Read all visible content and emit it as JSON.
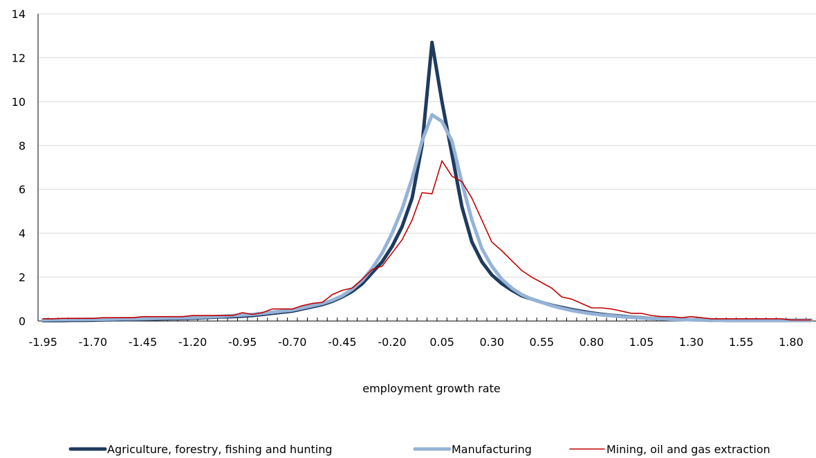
{
  "chart_data": {
    "type": "line",
    "title": "",
    "xlabel": "employment growth rate",
    "ylabel": "",
    "ylim": [
      0,
      14
    ],
    "yticks": [
      0,
      2,
      4,
      6,
      8,
      10,
      12,
      14
    ],
    "grid": "horizontal",
    "legend_position": "bottom",
    "x": [
      -1.95,
      -1.9,
      -1.85,
      -1.8,
      -1.75,
      -1.7,
      -1.65,
      -1.6,
      -1.55,
      -1.5,
      -1.45,
      -1.4,
      -1.35,
      -1.3,
      -1.25,
      -1.2,
      -1.15,
      -1.1,
      -1.05,
      -1.0,
      -0.95,
      -0.9,
      -0.85,
      -0.8,
      -0.75,
      -0.7,
      -0.65,
      -0.6,
      -0.55,
      -0.5,
      -0.45,
      -0.4,
      -0.35,
      -0.3,
      -0.25,
      -0.2,
      -0.15,
      -0.1,
      -0.05,
      0.0,
      0.05,
      0.1,
      0.15,
      0.2,
      0.25,
      0.3,
      0.35,
      0.4,
      0.45,
      0.5,
      0.55,
      0.6,
      0.65,
      0.7,
      0.75,
      0.8,
      0.85,
      0.9,
      0.95,
      1.0,
      1.05,
      1.1,
      1.15,
      1.2,
      1.25,
      1.3,
      1.35,
      1.4,
      1.45,
      1.5,
      1.55,
      1.6,
      1.65,
      1.7,
      1.75,
      1.8,
      1.85,
      1.9
    ],
    "xtick_labels": [
      "-1.95",
      "-1.70",
      "-1.45",
      "-1.20",
      "-0.95",
      "-0.70",
      "-0.45",
      "-0.20",
      "0.05",
      "0.30",
      "0.55",
      "0.80",
      "1.05",
      "1.30",
      "1.55",
      "1.80"
    ],
    "series": [
      {
        "name": "Agriculture, forestry, fishing and hunting",
        "color": "#1f3b5e",
        "values": [
          0.02,
          0.02,
          0.02,
          0.03,
          0.03,
          0.04,
          0.05,
          0.06,
          0.06,
          0.07,
          0.08,
          0.09,
          0.1,
          0.11,
          0.12,
          0.13,
          0.15,
          0.17,
          0.19,
          0.2,
          0.22,
          0.25,
          0.3,
          0.35,
          0.4,
          0.45,
          0.55,
          0.65,
          0.75,
          0.9,
          1.1,
          1.35,
          1.7,
          2.2,
          2.7,
          3.4,
          4.3,
          5.6,
          8.0,
          12.7,
          10.0,
          7.6,
          5.2,
          3.6,
          2.7,
          2.1,
          1.7,
          1.4,
          1.15,
          1.0,
          0.85,
          0.72,
          0.62,
          0.52,
          0.44,
          0.37,
          0.31,
          0.26,
          0.22,
          0.18,
          0.15,
          0.12,
          0.1,
          0.08,
          0.07,
          0.06,
          0.05,
          0.04,
          0.04,
          0.03,
          0.03,
          0.03,
          0.03,
          0.03,
          0.03,
          0.03,
          0.03,
          0.03
        ]
      },
      {
        "name": "Manufacturing",
        "color": "#95b3d7",
        "values": [
          0.05,
          0.06,
          0.06,
          0.07,
          0.07,
          0.08,
          0.08,
          0.09,
          0.1,
          0.1,
          0.11,
          0.12,
          0.13,
          0.14,
          0.15,
          0.16,
          0.18,
          0.2,
          0.22,
          0.25,
          0.27,
          0.3,
          0.35,
          0.4,
          0.45,
          0.5,
          0.6,
          0.7,
          0.8,
          0.95,
          1.15,
          1.45,
          1.85,
          2.4,
          3.1,
          4.0,
          5.1,
          6.5,
          8.2,
          9.4,
          9.1,
          8.2,
          6.3,
          4.6,
          3.3,
          2.5,
          1.9,
          1.5,
          1.2,
          1.0,
          0.85,
          0.7,
          0.58,
          0.48,
          0.4,
          0.33,
          0.28,
          0.24,
          0.2,
          0.17,
          0.14,
          0.12,
          0.1,
          0.08,
          0.07,
          0.06,
          0.05,
          0.05,
          0.04,
          0.04,
          0.04,
          0.04,
          0.04,
          0.04,
          0.04,
          0.04,
          0.04,
          0.04
        ]
      },
      {
        "name": "Mining, oil and gas extraction",
        "color": "#c00000",
        "values": [
          0.1,
          0.1,
          0.12,
          0.12,
          0.12,
          0.12,
          0.15,
          0.15,
          0.15,
          0.15,
          0.2,
          0.2,
          0.2,
          0.2,
          0.2,
          0.25,
          0.25,
          0.25,
          0.25,
          0.25,
          0.38,
          0.3,
          0.38,
          0.55,
          0.55,
          0.55,
          0.7,
          0.8,
          0.85,
          1.2,
          1.4,
          1.5,
          1.9,
          2.35,
          2.5,
          3.1,
          3.7,
          4.6,
          5.85,
          5.8,
          7.3,
          6.6,
          6.35,
          5.6,
          4.6,
          3.6,
          3.2,
          2.75,
          2.3,
          2.0,
          1.75,
          1.5,
          1.1,
          1.0,
          0.8,
          0.6,
          0.6,
          0.55,
          0.45,
          0.35,
          0.35,
          0.25,
          0.2,
          0.2,
          0.15,
          0.2,
          0.15,
          0.1,
          0.1,
          0.1,
          0.1,
          0.1,
          0.1,
          0.1,
          0.1,
          0.05,
          0.05,
          0.05
        ]
      }
    ]
  }
}
